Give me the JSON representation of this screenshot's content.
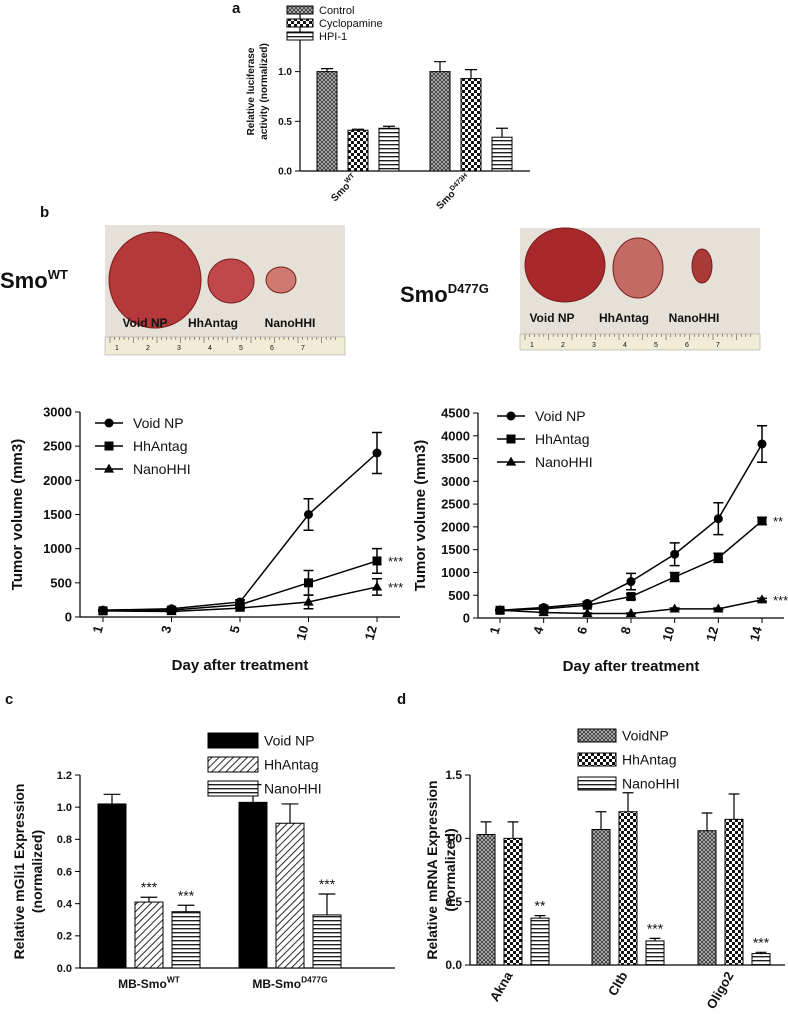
{
  "panels": {
    "letters": [
      "a",
      "b",
      "c",
      "d"
    ]
  },
  "headings": [
    {
      "text": "Smo",
      "sup": "WT"
    },
    {
      "text": "Smo",
      "sup": "D477G"
    }
  ],
  "photos": [
    {
      "labels": [
        "Void NP",
        "HhAntag",
        "NanoHHI"
      ],
      "ruler": [
        1,
        2,
        3,
        4,
        5,
        6,
        7
      ]
    },
    {
      "labels": [
        "Void NP",
        "HhAntag",
        "NanoHHI"
      ],
      "ruler": [
        1,
        2,
        3,
        4,
        5,
        6,
        7
      ]
    }
  ],
  "chart_data": [
    {
      "type": "bar",
      "ylabel": [
        "Relative luciferase",
        "activity (normalized)"
      ],
      "categories": [
        "Smo",
        "Smo"
      ],
      "category_superscripts": [
        "WT",
        "D473H"
      ],
      "ylim": [
        0,
        1.6
      ],
      "yticks": [
        {
          "value": 0,
          "label": "0.0"
        },
        0.5,
        {
          "value": 1,
          "label": "1.0"
        }
      ],
      "series": [
        {
          "name": "Control",
          "color": "#000000",
          "pattern": "crosshatch",
          "values": [
            1.0,
            1.0
          ],
          "errors": [
            0.03,
            0.1
          ]
        },
        {
          "name": "Cyclopamine",
          "color": "#000000",
          "pattern": "checker",
          "values": [
            0.41,
            0.93
          ],
          "errors": [
            0.01,
            0.09
          ]
        },
        {
          "name": "HPI-1",
          "color": "#000000",
          "pattern": "hstripes",
          "values": [
            0.43,
            0.34
          ],
          "errors": [
            0.02,
            0.09
          ]
        }
      ]
    },
    {
      "type": "line",
      "xlabel": "Day after treatment",
      "ylabel": "Tumor volume (mm3)",
      "categories": [
        1,
        3,
        5,
        10,
        12
      ],
      "ylim": [
        0,
        3000
      ],
      "yticks": [
        0,
        500,
        1000,
        1500,
        2000,
        2500,
        3000
      ],
      "series": [
        {
          "name": "Void NP",
          "color": "#000000",
          "marker": "circle",
          "values": [
            100,
            120,
            220,
            1500,
            2400
          ],
          "errors": [
            10,
            20,
            30,
            230,
            300
          ],
          "annotations": [
            null,
            null,
            null,
            null,
            null
          ]
        },
        {
          "name": "HhAntag",
          "color": "#000000",
          "marker": "square",
          "values": [
            90,
            100,
            180,
            500,
            820
          ],
          "errors": [
            10,
            15,
            20,
            180,
            180
          ],
          "annotations": [
            null,
            null,
            null,
            null,
            "***"
          ]
        },
        {
          "name": "NanoHHI",
          "color": "#000000",
          "marker": "triangle",
          "values": [
            90,
            80,
            130,
            220,
            440
          ],
          "errors": [
            10,
            10,
            15,
            100,
            120
          ],
          "annotations": [
            null,
            null,
            null,
            null,
            "***"
          ]
        }
      ]
    },
    {
      "type": "line",
      "xlabel": "Day after treatment",
      "ylabel": "Tumor volume (mm3)",
      "categories": [
        1,
        4,
        6,
        8,
        10,
        12,
        14
      ],
      "ylim": [
        0,
        4500
      ],
      "yticks": [
        0,
        500,
        1000,
        1500,
        2000,
        2500,
        3000,
        3500,
        4000,
        4500
      ],
      "series": [
        {
          "name": "Void NP",
          "color": "#000000",
          "marker": "circle",
          "values": [
            170,
            230,
            320,
            800,
            1400,
            2180,
            3820
          ],
          "errors": [
            20,
            30,
            40,
            180,
            250,
            350,
            400
          ],
          "annotations": [
            null,
            null,
            null,
            null,
            null,
            null,
            null
          ]
        },
        {
          "name": "HhAntag",
          "color": "#000000",
          "marker": "square",
          "values": [
            170,
            200,
            280,
            470,
            900,
            1320,
            2130
          ],
          "errors": [
            20,
            20,
            30,
            60,
            100,
            100,
            80
          ],
          "annotations": [
            null,
            null,
            null,
            null,
            null,
            null,
            "**"
          ]
        },
        {
          "name": "NanoHHI",
          "color": "#000000",
          "marker": "triangle",
          "values": [
            170,
            120,
            100,
            100,
            200,
            200,
            400
          ],
          "errors": [
            10,
            10,
            10,
            10,
            20,
            20,
            30
          ],
          "annotations": [
            null,
            null,
            null,
            null,
            null,
            null,
            "***"
          ]
        }
      ]
    },
    {
      "type": "bar",
      "ylabel": [
        "Relative mGli1 Expression",
        "(normalized)"
      ],
      "categories": [
        "MB-Smo",
        "MB-Smo"
      ],
      "category_superscripts": [
        "WT",
        "D477G"
      ],
      "ylim": [
        0,
        1.2
      ],
      "yticks": [
        {
          "value": 0,
          "label": "0.0"
        },
        0.2,
        0.4,
        0.6,
        0.8,
        {
          "value": 1,
          "label": "1.0"
        },
        1.2
      ],
      "series": [
        {
          "name": "Void NP",
          "color": "#000000",
          "pattern": "solid",
          "values": [
            1.02,
            1.03
          ],
          "errors": [
            0.06,
            0.11
          ],
          "annotations": [
            null,
            null
          ]
        },
        {
          "name": "HhAntag",
          "color": "#000000",
          "pattern": "diagonal",
          "values": [
            0.41,
            0.9
          ],
          "errors": [
            0.03,
            0.12
          ],
          "annotations": [
            "***",
            null
          ]
        },
        {
          "name": "NanoHHI",
          "color": "#000000",
          "pattern": "hstripes",
          "values": [
            0.35,
            0.33
          ],
          "errors": [
            0.04,
            0.13
          ],
          "annotations": [
            "***",
            "***"
          ]
        }
      ]
    },
    {
      "type": "bar",
      "ylabel": [
        "Relative mRNA Expression",
        "(normalized)"
      ],
      "categories": [
        "Akna",
        "Cltb",
        "Oligo2"
      ],
      "ylim": [
        0,
        1.5
      ],
      "yticks": [
        {
          "value": 0,
          "label": "0.0"
        },
        0.5,
        {
          "value": 1,
          "label": "1.0"
        },
        1.5
      ],
      "series": [
        {
          "name": "VoidNP",
          "color": "#000000",
          "pattern": "crosshatch",
          "values": [
            1.03,
            1.07,
            1.06
          ],
          "errors": [
            0.1,
            0.14,
            0.14
          ],
          "annotations": [
            null,
            null,
            null
          ]
        },
        {
          "name": "HhAntag",
          "color": "#000000",
          "pattern": "checker",
          "values": [
            1.0,
            1.21,
            1.15
          ],
          "errors": [
            0.13,
            0.15,
            0.2
          ],
          "annotations": [
            null,
            null,
            null
          ]
        },
        {
          "name": "NanoHHI",
          "color": "#000000",
          "pattern": "hstripes",
          "values": [
            0.37,
            0.19,
            0.09
          ],
          "errors": [
            0.02,
            0.02,
            0.01
          ],
          "annotations": [
            "**",
            "***",
            "***"
          ]
        }
      ]
    }
  ]
}
